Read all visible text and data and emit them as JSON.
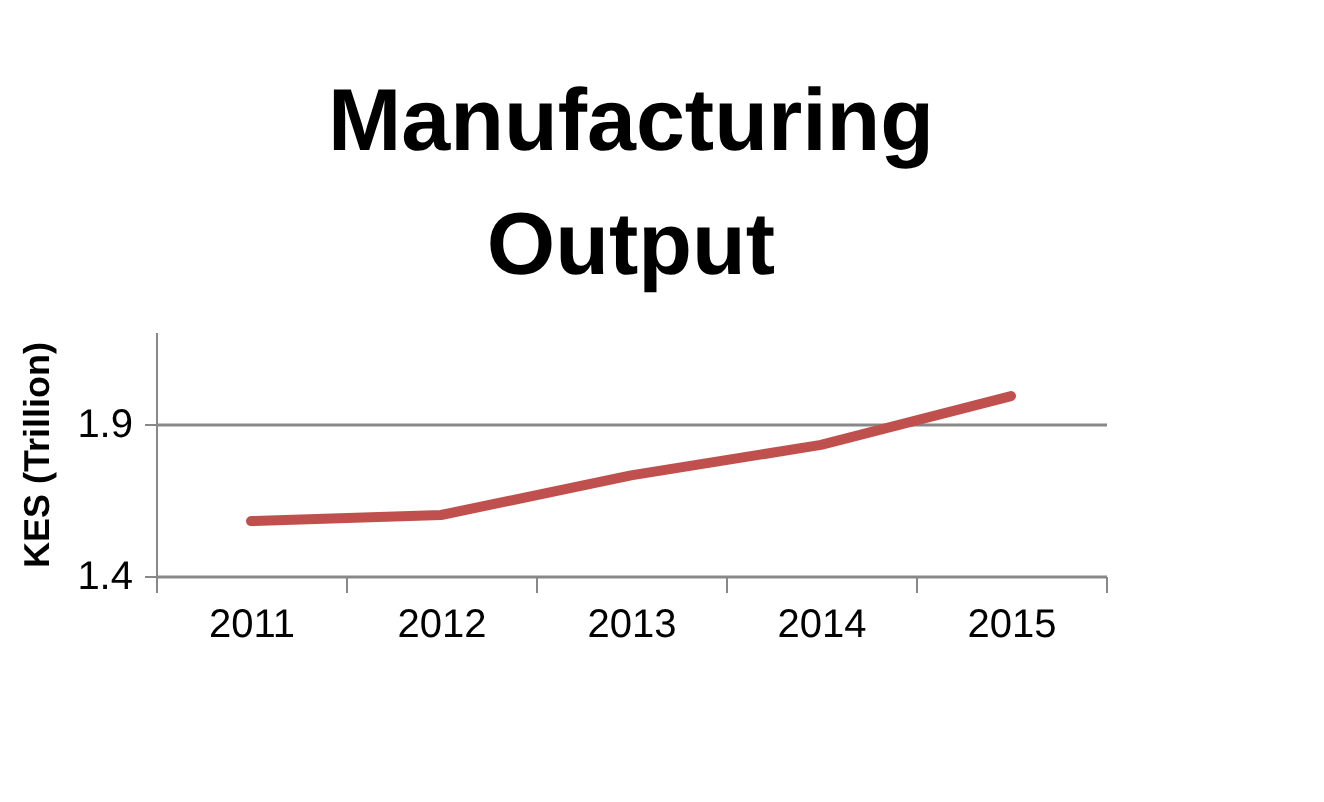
{
  "chart_data": {
    "type": "line",
    "title": "Manufacturing Output",
    "ylabel": "KES (Trillion)",
    "categories": [
      "2011",
      "2012",
      "2013",
      "2014",
      "2015"
    ],
    "series": [
      {
        "color": "#c0504d",
        "values": [
          1.58,
          1.6,
          1.73,
          1.83,
          1.99
        ]
      }
    ],
    "ylim": [
      1.4,
      2.2
    ],
    "yticks": [
      1.4,
      1.9
    ],
    "grid": "y",
    "marker": "none",
    "line_style": "solid"
  }
}
